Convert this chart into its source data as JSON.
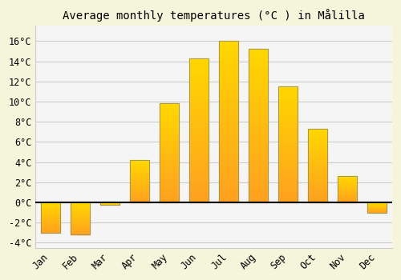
{
  "title": "Average monthly temperatures (°C ) in Målilla",
  "months": [
    "Jan",
    "Feb",
    "Mar",
    "Apr",
    "May",
    "Jun",
    "Jul",
    "Aug",
    "Sep",
    "Oct",
    "Nov",
    "Dec"
  ],
  "temperatures": [
    -3.0,
    -3.2,
    -0.2,
    4.2,
    9.8,
    14.3,
    16.0,
    15.2,
    11.5,
    7.3,
    2.6,
    -1.0
  ],
  "bar_color_top": "#FFD700",
  "bar_color_bottom": "#FFA020",
  "bar_edge_color": "#999966",
  "figure_bg": "#F5F5DC",
  "plot_bg": "#F5F5F5",
  "grid_color": "#CCCCCC",
  "zero_line_color": "#000000",
  "ylim": [
    -4.5,
    17.5
  ],
  "yticks": [
    -4,
    -2,
    0,
    2,
    4,
    6,
    8,
    10,
    12,
    14,
    16
  ],
  "title_fontsize": 10,
  "tick_fontsize": 8.5,
  "font_family": "monospace",
  "bar_width": 0.65
}
